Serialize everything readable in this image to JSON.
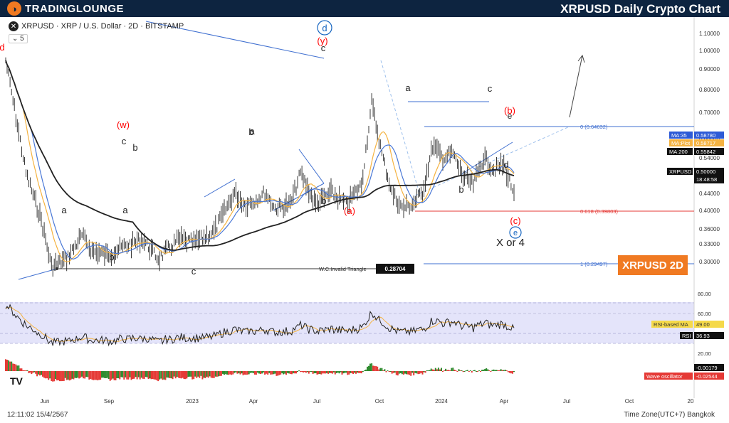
{
  "header": {
    "brand": "TradingLounge",
    "brand_display": "TRADINGLOUNGE",
    "title": "XRPUSD Daily Crypto Chart"
  },
  "symbol_title": "XRPUSD · XRP / U.S. Dollar · 2D · BITSTAMP",
  "indicator_count": "5",
  "badge": "XRPUSD 2D",
  "clock": "12:11:02 15/4/2567",
  "timezone": "Time Zone(UTC+7) Bangkok",
  "colors": {
    "banner": "#0d2440",
    "accent": "#f07a22",
    "wave_blue": "#1565c0",
    "wave_red": "#e53935",
    "ma35": "#4a78d6",
    "ma_plot": "#f5b341",
    "ma200": "#222222",
    "rsi": "#222222",
    "rsi_band": "#dcdcf7",
    "osc_up": "#2e8b2e",
    "osc_down": "#e53935"
  },
  "chart_data": [
    {
      "type": "line",
      "name": "price",
      "scale": "log",
      "x_ticks": [
        "Jun",
        "Sep",
        "2023",
        "Apr",
        "Jul",
        "Oct",
        "2024",
        "Apr",
        "Jul",
        "Oct",
        "20"
      ],
      "y_ticks": [
        "1.10000",
        "1.00000",
        "0.90000",
        "0.80000",
        "0.70000",
        "0.60000",
        "0.54000",
        "0.50000",
        "0.44000",
        "0.40000",
        "0.36000",
        "0.33000",
        "0.30000"
      ],
      "close_path_x": [
        0,
        0.04,
        0.07,
        0.09,
        0.12,
        0.15,
        0.17,
        0.2,
        0.23,
        0.27,
        0.3,
        0.34,
        0.37,
        0.41,
        0.45,
        0.47,
        0.49,
        0.51,
        0.53,
        0.56,
        0.58,
        0.61,
        0.64,
        0.67,
        0.7,
        0.72,
        0.74,
        0.76,
        0.78,
        0.8,
        0.82,
        0.84,
        0.86,
        0.88,
        0.9,
        0.92,
        0.94,
        0.96,
        0.98,
        1.0
      ],
      "close_path_y": [
        0.84,
        0.55,
        0.43,
        0.31,
        0.33,
        0.39,
        0.35,
        0.34,
        0.36,
        0.38,
        0.33,
        0.38,
        0.37,
        0.4,
        0.5,
        0.47,
        0.48,
        0.5,
        0.46,
        0.47,
        0.55,
        0.47,
        0.5,
        0.47,
        0.52,
        0.73,
        0.6,
        0.5,
        0.46,
        0.47,
        0.5,
        0.62,
        0.59,
        0.6,
        0.54,
        0.52,
        0.59,
        0.56,
        0.57,
        0.5
      ],
      "last_price": "0.50000",
      "countdown": "18:48:58",
      "moving_averages": [
        {
          "label": "MA:35",
          "value": "0.58780"
        },
        {
          "label": "MA:Plot",
          "value": "0.58717"
        },
        {
          "label": "MA:200",
          "value": "0.55842"
        }
      ],
      "fib_levels": [
        {
          "label": "0 (0.64632)",
          "value": 0.64632
        },
        {
          "label": "0.618 (0.39803)",
          "value": 0.39803
        },
        {
          "label": "1 (0.29497)",
          "value": 0.29497
        }
      ],
      "invalid_triangle": {
        "label": "W.C.Invalid Triangle",
        "value": "0.28704"
      },
      "wave_labels": [
        "(w)",
        "c",
        "b",
        "a",
        "b",
        "c",
        "a",
        "b",
        "d",
        "(y)",
        "c",
        "(a)",
        "a",
        "c",
        "e",
        "(b)",
        "d",
        "b",
        "(c)",
        "e",
        "X or 4",
        "a",
        "b"
      ]
    },
    {
      "type": "line",
      "name": "RSI",
      "y_ticks": [
        "80.00",
        "60.00",
        "40.00",
        "20.00"
      ],
      "band": [
        30,
        70
      ],
      "rsi_ma_label": "RSI-based MA",
      "rsi_ma_value": "49.00",
      "rsi_label": "RSI",
      "rsi_value": "36.93"
    },
    {
      "type": "bar",
      "name": "Wave oscillator",
      "label": "Wave oscillator",
      "values_label": [
        "-0.00179",
        "-0.02544"
      ]
    }
  ]
}
